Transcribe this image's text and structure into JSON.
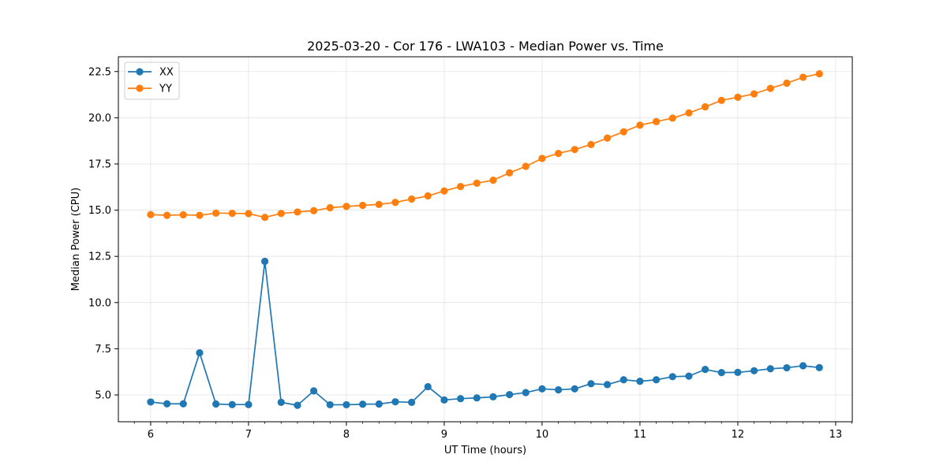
{
  "chart_data": {
    "type": "line",
    "title": "2025-03-20 - Cor 176 - LWA103 - Median Power vs. Time",
    "xlabel": "UT Time (hours)",
    "ylabel": "Median Power (CPU)",
    "xlim": [
      5.67,
      13.17
    ],
    "ylim": [
      3.55,
      23.3
    ],
    "xticks": [
      6,
      7,
      8,
      9,
      10,
      11,
      12,
      13
    ],
    "yticks": [
      5.0,
      7.5,
      10.0,
      12.5,
      15.0,
      17.5,
      20.0,
      22.5
    ],
    "ytick_labels": [
      "5.0",
      "7.5",
      "10.0",
      "12.5",
      "15.0",
      "17.5",
      "20.0",
      "22.5"
    ],
    "grid": true,
    "legend_position": "upper-left",
    "x": [
      6.0,
      6.1667,
      6.3333,
      6.5,
      6.6667,
      6.8333,
      7.0,
      7.1667,
      7.3333,
      7.5,
      7.6667,
      7.8333,
      8.0,
      8.1667,
      8.3333,
      8.5,
      8.6667,
      8.8333,
      9.0,
      9.1667,
      9.3333,
      9.5,
      9.6667,
      9.8333,
      10.0,
      10.1667,
      10.3333,
      10.5,
      10.6667,
      10.8333,
      11.0,
      11.1667,
      11.3333,
      11.5,
      11.6667,
      11.8333,
      12.0,
      12.1667,
      12.3333,
      12.5,
      12.6667,
      12.8333
    ],
    "series": [
      {
        "name": "XX",
        "color": "#1f77b4",
        "values": [
          4.62,
          4.52,
          4.52,
          7.28,
          4.51,
          4.48,
          4.48,
          12.23,
          4.6,
          4.44,
          5.22,
          4.47,
          4.47,
          4.5,
          4.51,
          4.63,
          4.6,
          5.45,
          4.73,
          4.8,
          4.84,
          4.9,
          5.02,
          5.13,
          5.33,
          5.28,
          5.33,
          5.61,
          5.56,
          5.82,
          5.74,
          5.82,
          5.99,
          6.02,
          6.38,
          6.21,
          6.22,
          6.31,
          6.42,
          6.47,
          6.58,
          6.48
        ]
      },
      {
        "name": "YY",
        "color": "#ff7f0e",
        "values": [
          14.76,
          14.72,
          14.75,
          14.72,
          14.84,
          14.83,
          14.81,
          14.61,
          14.82,
          14.9,
          14.97,
          15.13,
          15.2,
          15.26,
          15.31,
          15.42,
          15.6,
          15.77,
          16.04,
          16.28,
          16.46,
          16.62,
          17.02,
          17.37,
          17.8,
          18.07,
          18.28,
          18.55,
          18.9,
          19.24,
          19.6,
          19.79,
          19.98,
          20.26,
          20.59,
          20.94,
          21.11,
          21.29,
          21.59,
          21.87,
          22.19,
          22.38
        ]
      }
    ]
  }
}
